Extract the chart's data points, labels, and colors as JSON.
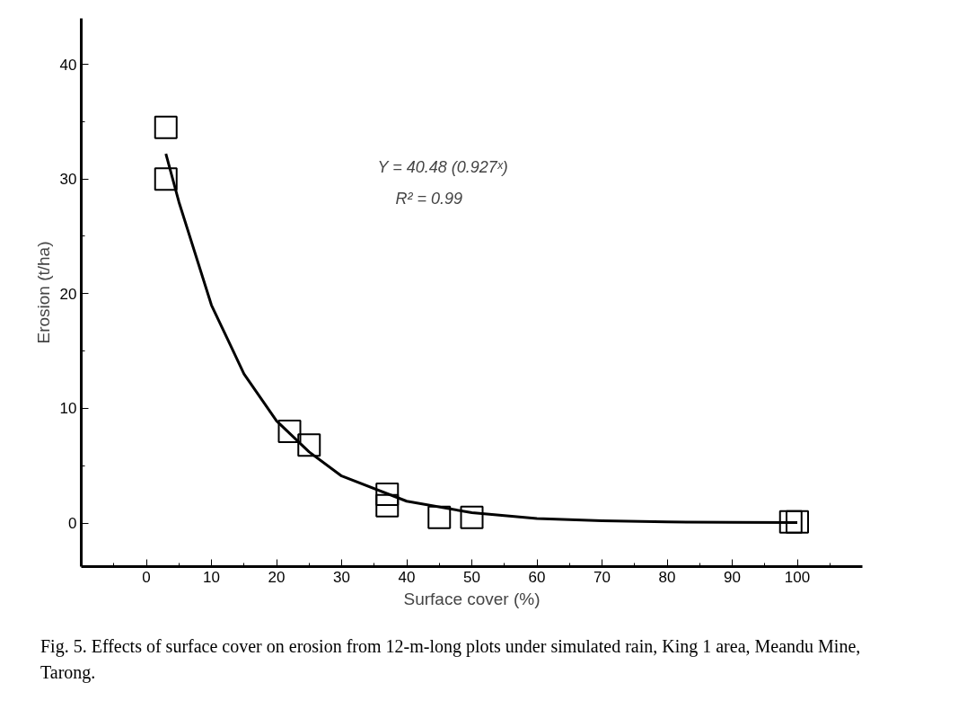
{
  "chart_data": {
    "type": "scatter",
    "xlabel": "Surface cover (%)",
    "ylabel": "Erosion (t/ha)",
    "x": [
      3,
      3,
      22,
      25,
      37,
      37,
      45,
      50,
      99,
      100
    ],
    "series": [
      {
        "color": "#000000",
        "marker": "square",
        "values": [
          34.5,
          30,
          8,
          6.8,
          2.5,
          1.5,
          0.5,
          0.5,
          0.1,
          0.1
        ]
      },
      {
        "type": "line",
        "color": "#000000",
        "x": [
          3,
          5,
          10,
          15,
          20,
          25,
          30,
          40,
          50,
          60,
          70,
          80,
          90,
          100
        ],
        "values": [
          32.2,
          28,
          19,
          13,
          8.9,
          6.2,
          4.1,
          1.9,
          0.9,
          0.4,
          0.2,
          0.1,
          0.05,
          0.03
        ]
      }
    ],
    "xlim": [
      -10,
      110
    ],
    "ylim": [
      -3.8,
      44
    ],
    "xticks": [
      0,
      10,
      20,
      30,
      40,
      50,
      60,
      70,
      80,
      90,
      100
    ],
    "yticks": [
      0,
      10,
      20,
      30,
      40
    ],
    "grid": false,
    "annotations": [
      "Y = 40.48 (0.927ˣ)",
      "R² = 0.99",
      "Fig. 5. Effects of surface cover on erosion from 12-m-long plots under simulated rain, King 1 area, Meandu Mine, Tarong."
    ]
  }
}
